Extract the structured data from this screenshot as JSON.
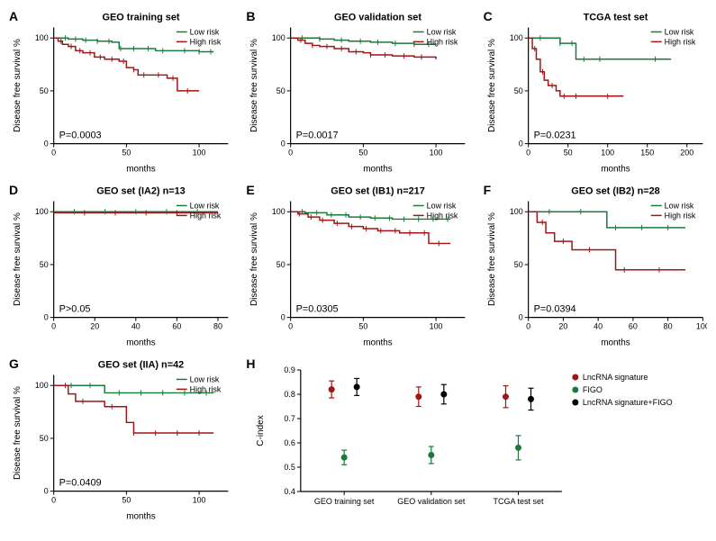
{
  "global": {
    "low_color": "#1a7a3a",
    "high_color": "#a01515",
    "bg": "#ffffff",
    "axis_color": "#000000",
    "line_width": 1.5,
    "tick_fontsize": 9,
    "title_fontsize": 11,
    "label_fontsize": 10
  },
  "panels": {
    "A": {
      "letter": "A",
      "title": "GEO training set",
      "xlabel": "months",
      "ylabel": "Disease free survival %",
      "xlim": [
        0,
        120
      ],
      "xtick_step": 50,
      "ylim": [
        0,
        110
      ],
      "ytick_step": 50,
      "ytick_labels": [
        0,
        50,
        100
      ],
      "pval": "P=0.0003",
      "legend": {
        "low": "Low risk",
        "high": "High risk"
      },
      "low_series": [
        [
          0,
          100
        ],
        [
          5,
          100
        ],
        [
          10,
          99
        ],
        [
          20,
          98
        ],
        [
          30,
          97
        ],
        [
          40,
          96
        ],
        [
          45,
          90
        ],
        [
          60,
          90
        ],
        [
          70,
          88
        ],
        [
          85,
          88
        ],
        [
          100,
          87
        ],
        [
          110,
          87
        ]
      ],
      "high_series": [
        [
          0,
          100
        ],
        [
          3,
          97
        ],
        [
          6,
          94
        ],
        [
          10,
          92
        ],
        [
          15,
          88
        ],
        [
          20,
          86
        ],
        [
          28,
          82
        ],
        [
          35,
          80
        ],
        [
          45,
          78
        ],
        [
          50,
          72
        ],
        [
          55,
          70
        ],
        [
          58,
          65
        ],
        [
          70,
          65
        ],
        [
          78,
          62
        ],
        [
          85,
          50
        ],
        [
          100,
          50
        ]
      ],
      "low_ticks": [
        8,
        15,
        22,
        30,
        38,
        46,
        55,
        65,
        75,
        90,
        100,
        108
      ],
      "high_ticks": [
        5,
        12,
        18,
        25,
        32,
        40,
        48,
        55,
        62,
        72,
        82,
        92
      ]
    },
    "B": {
      "letter": "B",
      "title": "GEO validation set",
      "xlabel": "months",
      "ylabel": "Disease free survival %",
      "xlim": [
        0,
        120
      ],
      "xtick_step": 50,
      "ylim": [
        0,
        110
      ],
      "ytick_step": 50,
      "ytick_labels": [
        0,
        50,
        100
      ],
      "pval": "P=0.0017",
      "legend": {
        "low": "Low risk",
        "high": "High risk"
      },
      "low_series": [
        [
          0,
          100
        ],
        [
          10,
          100
        ],
        [
          20,
          99
        ],
        [
          30,
          98
        ],
        [
          40,
          97
        ],
        [
          55,
          96
        ],
        [
          70,
          95
        ],
        [
          85,
          94
        ],
        [
          100,
          94
        ]
      ],
      "high_series": [
        [
          0,
          100
        ],
        [
          5,
          98
        ],
        [
          10,
          95
        ],
        [
          15,
          93
        ],
        [
          20,
          92
        ],
        [
          30,
          90
        ],
        [
          40,
          87
        ],
        [
          50,
          86
        ],
        [
          55,
          84
        ],
        [
          70,
          83
        ],
        [
          85,
          82
        ],
        [
          100,
          80
        ]
      ],
      "low_ticks": [
        8,
        20,
        35,
        48,
        60,
        72,
        85,
        95
      ],
      "high_ticks": [
        7,
        15,
        25,
        35,
        45,
        55,
        65,
        78,
        90
      ]
    },
    "C": {
      "letter": "C",
      "title": "TCGA test set",
      "xlabel": "months",
      "ylabel": "Disease free survival %",
      "xlim": [
        0,
        220
      ],
      "xtick_step": 50,
      "ylim": [
        0,
        110
      ],
      "ytick_step": 50,
      "ytick_labels": [
        0,
        50,
        100
      ],
      "pval": "P=0.0231",
      "legend": {
        "low": "Low risk",
        "high": "High risk"
      },
      "low_series": [
        [
          0,
          100
        ],
        [
          20,
          100
        ],
        [
          40,
          95
        ],
        [
          50,
          95
        ],
        [
          60,
          80
        ],
        [
          80,
          80
        ],
        [
          180,
          80
        ]
      ],
      "high_series": [
        [
          0,
          100
        ],
        [
          5,
          90
        ],
        [
          10,
          80
        ],
        [
          15,
          68
        ],
        [
          20,
          60
        ],
        [
          25,
          55
        ],
        [
          35,
          50
        ],
        [
          40,
          45
        ],
        [
          55,
          45
        ],
        [
          120,
          45
        ]
      ],
      "low_ticks": [
        15,
        40,
        55,
        70,
        90,
        160
      ],
      "high_ticks": [
        8,
        18,
        30,
        45,
        60,
        100
      ]
    },
    "D": {
      "letter": "D",
      "title": "GEO set (IA2) n=13",
      "xlabel": "months",
      "ylabel": "Disease free survival %",
      "xlim": [
        0,
        85
      ],
      "xtick_step": 20,
      "ylim": [
        0,
        110
      ],
      "ytick_step": 50,
      "ytick_labels": [
        0,
        50,
        100
      ],
      "pval": "P>0.05",
      "legend": {
        "low": "Low risk",
        "high": "High risk"
      },
      "low_series": [
        [
          0,
          100
        ],
        [
          80,
          100
        ]
      ],
      "high_series": [
        [
          0,
          99
        ],
        [
          80,
          99
        ]
      ],
      "low_ticks": [
        10,
        25,
        40,
        55,
        70
      ],
      "high_ticks": [
        15,
        30,
        45,
        60
      ]
    },
    "E": {
      "letter": "E",
      "title": "GEO set (IB1) n=217",
      "xlabel": "months",
      "ylabel": "Disease free survival %",
      "xlim": [
        0,
        120
      ],
      "xtick_step": 50,
      "ylim": [
        0,
        110
      ],
      "ytick_step": 50,
      "ytick_labels": [
        0,
        50,
        100
      ],
      "pval": "P=0.0305",
      "legend": {
        "low": "Low risk",
        "high": "High risk"
      },
      "low_series": [
        [
          0,
          100
        ],
        [
          10,
          99
        ],
        [
          25,
          97
        ],
        [
          40,
          95
        ],
        [
          55,
          94
        ],
        [
          70,
          93
        ],
        [
          85,
          93
        ],
        [
          100,
          93
        ],
        [
          110,
          93
        ]
      ],
      "high_series": [
        [
          0,
          100
        ],
        [
          5,
          98
        ],
        [
          12,
          95
        ],
        [
          20,
          92
        ],
        [
          30,
          89
        ],
        [
          40,
          86
        ],
        [
          50,
          84
        ],
        [
          60,
          82
        ],
        [
          75,
          80
        ],
        [
          85,
          80
        ],
        [
          95,
          70
        ],
        [
          110,
          70
        ]
      ],
      "low_ticks": [
        8,
        18,
        28,
        38,
        48,
        58,
        68,
        78,
        88,
        98,
        108
      ],
      "high_ticks": [
        6,
        14,
        22,
        32,
        42,
        52,
        62,
        72,
        82,
        92,
        102
      ]
    },
    "F": {
      "letter": "F",
      "title": "GEO set (IB2) n=28",
      "xlabel": "months",
      "ylabel": "Disease free survival %",
      "xlim": [
        0,
        100
      ],
      "xtick_step": 20,
      "ylim": [
        0,
        110
      ],
      "ytick_step": 50,
      "ytick_labels": [
        0,
        50,
        100
      ],
      "pval": "P=0.0394",
      "legend": {
        "low": "Low risk",
        "high": "High risk"
      },
      "low_series": [
        [
          0,
          100
        ],
        [
          40,
          100
        ],
        [
          45,
          85
        ],
        [
          90,
          85
        ]
      ],
      "high_series": [
        [
          0,
          100
        ],
        [
          5,
          90
        ],
        [
          10,
          80
        ],
        [
          15,
          72
        ],
        [
          25,
          64
        ],
        [
          40,
          64
        ],
        [
          50,
          45
        ],
        [
          90,
          45
        ]
      ],
      "low_ticks": [
        12,
        30,
        50,
        65,
        80
      ],
      "high_ticks": [
        8,
        20,
        35,
        55,
        75
      ]
    },
    "G": {
      "letter": "G",
      "title": "GEO set (IIA) n=42",
      "xlabel": "months",
      "ylabel": "Disease free survival %",
      "xlim": [
        0,
        120
      ],
      "xtick_step": 50,
      "ylim": [
        0,
        110
      ],
      "ytick_step": 50,
      "ytick_labels": [
        0,
        50,
        100
      ],
      "pval": "P=0.0409",
      "legend": {
        "low": "Low risk",
        "high": "High risk"
      },
      "low_series": [
        [
          0,
          100
        ],
        [
          30,
          100
        ],
        [
          35,
          93
        ],
        [
          110,
          93
        ]
      ],
      "high_series": [
        [
          0,
          100
        ],
        [
          10,
          92
        ],
        [
          15,
          85
        ],
        [
          35,
          80
        ],
        [
          45,
          80
        ],
        [
          50,
          65
        ],
        [
          55,
          55
        ],
        [
          110,
          55
        ]
      ],
      "low_ticks": [
        12,
        25,
        45,
        60,
        75,
        90,
        105
      ],
      "high_ticks": [
        8,
        20,
        40,
        55,
        70,
        85,
        100
      ]
    }
  },
  "panelH": {
    "letter": "H",
    "ylabel": "C-index",
    "ylim": [
      0.4,
      0.9
    ],
    "yticks": [
      0.4,
      0.5,
      0.6,
      0.7,
      0.8,
      0.9
    ],
    "groups": [
      "GEO training set",
      "GEO validation set",
      "TCGA test set"
    ],
    "series": [
      {
        "name": "LncRNA signature",
        "color": "#a01515"
      },
      {
        "name": "FIGO",
        "color": "#1a7a3a"
      },
      {
        "name": "LncRNA signature+FIGO",
        "color": "#000000"
      }
    ],
    "points": [
      {
        "g": 0,
        "s": 0,
        "y": 0.82,
        "err": 0.035
      },
      {
        "g": 0,
        "s": 1,
        "y": 0.54,
        "err": 0.03
      },
      {
        "g": 0,
        "s": 2,
        "y": 0.83,
        "err": 0.035
      },
      {
        "g": 1,
        "s": 0,
        "y": 0.79,
        "err": 0.04
      },
      {
        "g": 1,
        "s": 1,
        "y": 0.55,
        "err": 0.035
      },
      {
        "g": 1,
        "s": 2,
        "y": 0.8,
        "err": 0.04
      },
      {
        "g": 2,
        "s": 0,
        "y": 0.79,
        "err": 0.045
      },
      {
        "g": 2,
        "s": 1,
        "y": 0.58,
        "err": 0.05
      },
      {
        "g": 2,
        "s": 2,
        "y": 0.78,
        "err": 0.045
      }
    ]
  }
}
